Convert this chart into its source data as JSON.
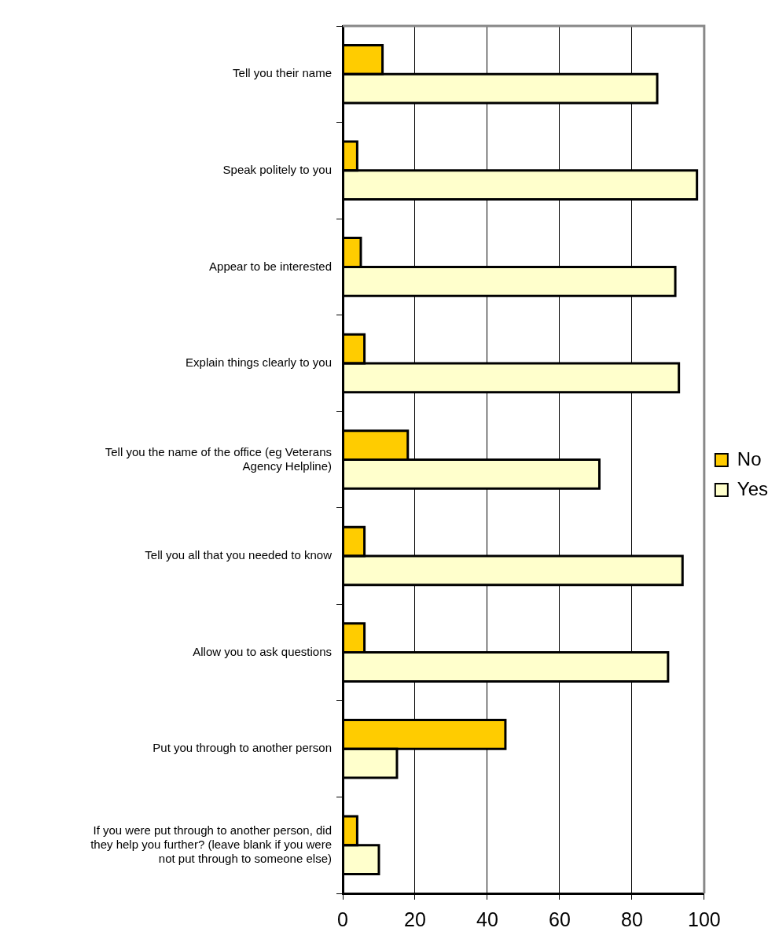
{
  "chart_data": {
    "type": "bar",
    "orientation": "horizontal",
    "categories": [
      "Tell you their name",
      "Speak politely to you",
      "Appear to be interested",
      "Explain things clearly to you",
      "Tell you the name of the office (eg Veterans Agency Helpline)",
      "Tell you all that you needed to know",
      "Allow you to ask questions",
      "Put you through to another person",
      "If you were put through to another person, did they help you further? (leave blank if you were not put through to someone else)"
    ],
    "series": [
      {
        "name": "No",
        "color": "#ffcc00",
        "values": [
          11,
          4,
          5,
          6,
          18,
          6,
          6,
          45,
          4
        ]
      },
      {
        "name": "Yes",
        "color": "#ffffcc",
        "values": [
          87,
          98,
          92,
          93,
          71,
          94,
          90,
          15,
          10
        ]
      }
    ],
    "xlim": [
      0,
      100
    ],
    "xticks": [
      0,
      20,
      40,
      60,
      80,
      100
    ],
    "grid": "x",
    "legend": "right"
  }
}
